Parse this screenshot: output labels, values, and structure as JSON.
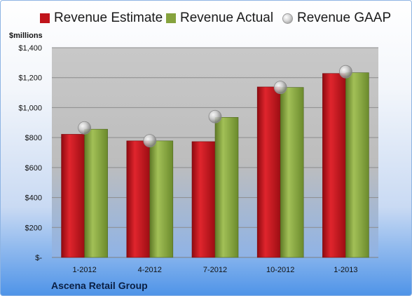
{
  "chart_data": {
    "type": "bar",
    "title": "",
    "ylabel": "$millions",
    "xlabel": "",
    "categories": [
      "1-2012",
      "4-2012",
      "7-2012",
      "10-2012",
      "1-2013"
    ],
    "series": [
      {
        "name": "Revenue Estimate",
        "kind": "bar",
        "values": [
          822,
          778,
          773,
          1138,
          1228
        ]
      },
      {
        "name": "Revenue Actual",
        "kind": "bar",
        "values": [
          856,
          778,
          935,
          1135,
          1233
        ]
      },
      {
        "name": "Revenue GAAP",
        "kind": "marker",
        "values": [
          865,
          779,
          940,
          1135,
          1240
        ]
      }
    ],
    "ylim": [
      0,
      1400
    ],
    "yticks": [
      0,
      200,
      400,
      600,
      800,
      1000,
      1200,
      1400
    ],
    "ytick_labels": [
      "$-",
      "$200",
      "$400",
      "$600",
      "$800",
      "$1,000",
      "$1,200",
      "$1,400"
    ],
    "grid": true,
    "legend_position": "top",
    "colors": {
      "estimate": "#c0141b",
      "actual": "#86a33d",
      "gaap": "#b5b5b5"
    }
  },
  "footer_text": "Ascena Retail Group"
}
